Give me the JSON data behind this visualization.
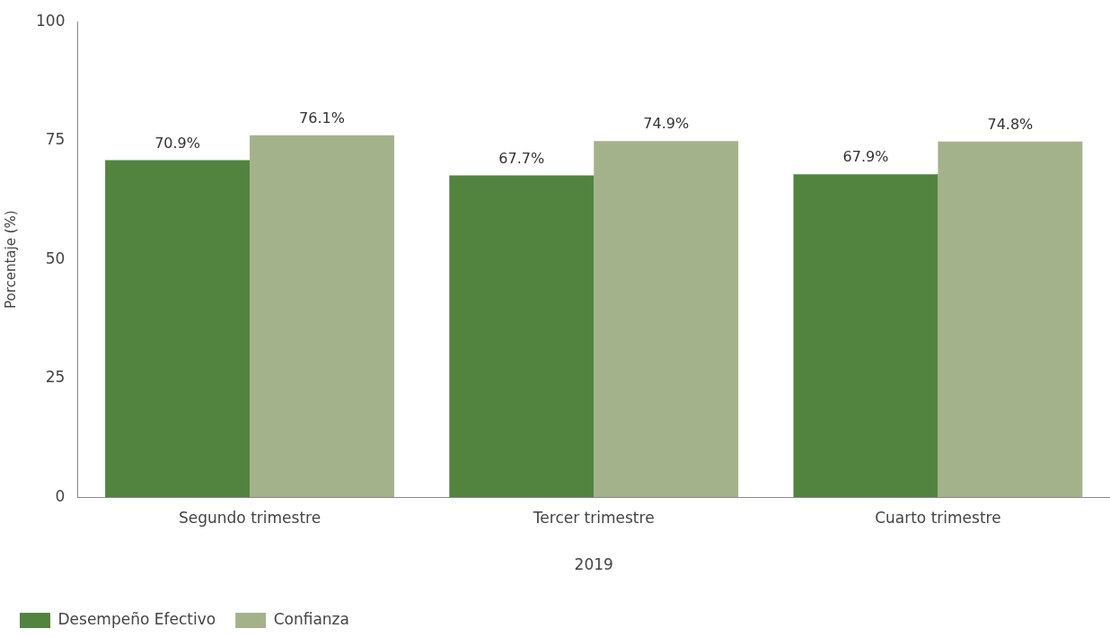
{
  "chart_data": {
    "type": "bar",
    "xlabel": "2019",
    "ylabel": "Porcentaje (%)",
    "categories": [
      "Segundo trimestre",
      "Tercer trimestre",
      "Cuarto trimestre"
    ],
    "series": [
      {
        "name": "Desempeño Efectivo",
        "color": "#52843f",
        "values": [
          70.9,
          67.7,
          67.9
        ],
        "value_labels": [
          "70.9%",
          "67.7%",
          "67.9%"
        ]
      },
      {
        "name": "Confianza",
        "color": "#a4b28c",
        "values": [
          76.1,
          74.9,
          74.8
        ],
        "value_labels": [
          "76.1%",
          "74.9%",
          "74.8%"
        ]
      }
    ],
    "ylim": [
      0,
      100
    ],
    "yticks": [
      0,
      25,
      50,
      75,
      100
    ],
    "grid": false,
    "legend": "bottom left"
  }
}
